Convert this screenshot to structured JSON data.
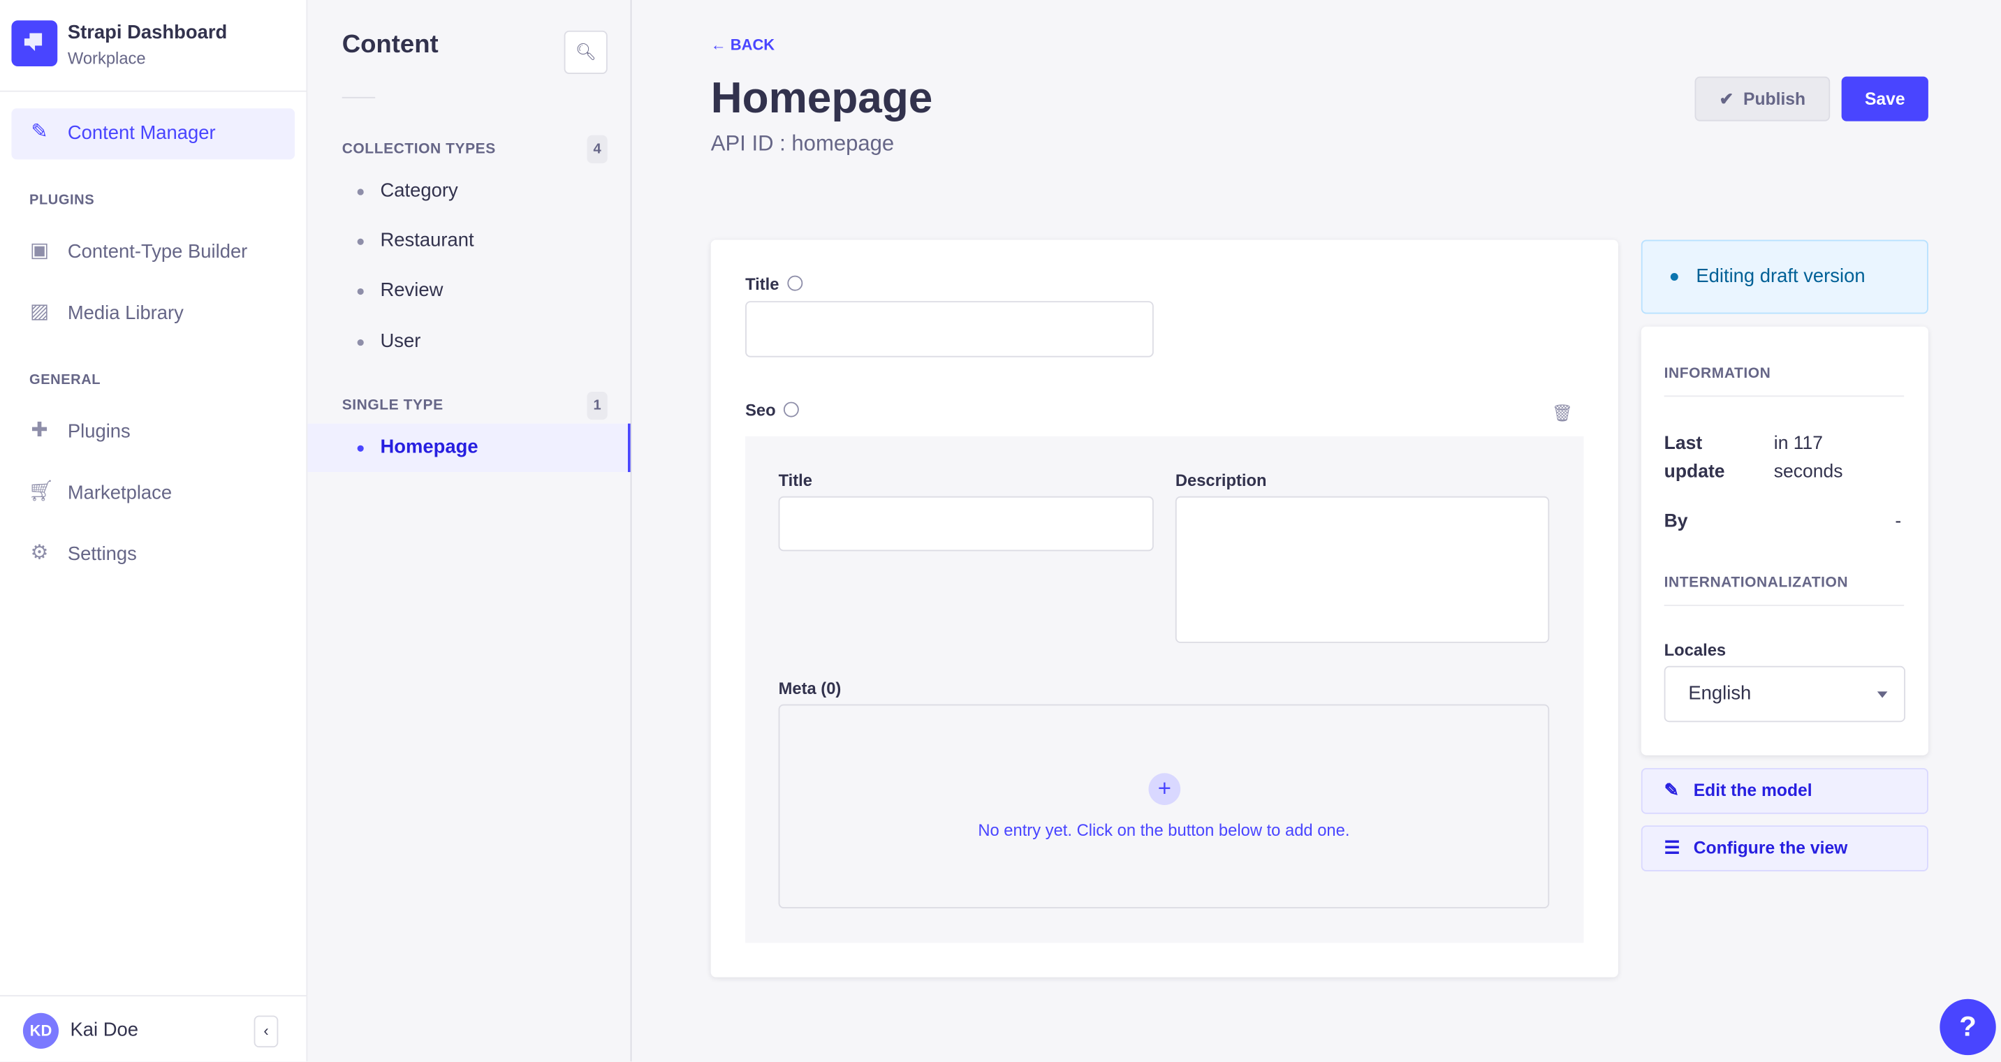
{
  "app": {
    "title": "Strapi Dashboard",
    "subtitle": "Workplace",
    "accent": "#4945ff"
  },
  "nav": {
    "active": "Content Manager",
    "sections": [
      {
        "label": "PLUGINS"
      },
      {
        "label": "GENERAL"
      }
    ],
    "items": [
      {
        "label": "Content Manager",
        "icon": "feather-icon"
      },
      {
        "label": "Content-Type Builder",
        "icon": "layout-icon"
      },
      {
        "label": "Media Library",
        "icon": "image-icon"
      },
      {
        "label": "Plugins",
        "icon": "puzzle-icon"
      },
      {
        "label": "Marketplace",
        "icon": "cart-icon"
      },
      {
        "label": "Settings",
        "icon": "gear-icon"
      }
    ],
    "user": {
      "initials": "KD",
      "name": "Kai Doe"
    }
  },
  "subnav": {
    "title": "Content",
    "collection": {
      "label": "COLLECTION TYPES",
      "count": "4",
      "items": [
        "Category",
        "Restaurant",
        "Review",
        "User"
      ]
    },
    "single": {
      "label": "SINGLE TYPE",
      "count": "1",
      "items": [
        "Homepage"
      ]
    }
  },
  "header": {
    "back": "BACK",
    "title": "Homepage",
    "api_id": "API ID : homepage",
    "publish": "Publish",
    "save": "Save"
  },
  "form": {
    "title_label": "Title",
    "title_value": "",
    "seo_label": "Seo",
    "seo_title_label": "Title",
    "seo_title_value": "",
    "seo_description_label": "Description",
    "seo_description_value": "",
    "meta_label": "Meta (0)",
    "meta_empty": "No entry yet. Click on the button below to add one."
  },
  "side": {
    "draft": "Editing draft version",
    "information": "INFORMATION",
    "last_update_label": "Last update",
    "last_update_value": "in 117 seconds",
    "by_label": "By",
    "by_value": "-",
    "i18n": "INTERNATIONALIZATION",
    "locales_label": "Locales",
    "locale_value": "English",
    "edit_model": "Edit the model",
    "configure_view": "Configure the view"
  },
  "help": "?"
}
